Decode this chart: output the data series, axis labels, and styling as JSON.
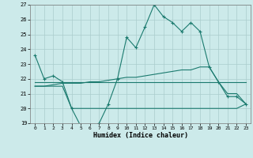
{
  "xlabel": "Humidex (Indice chaleur)",
  "x": [
    0,
    1,
    2,
    3,
    4,
    5,
    6,
    7,
    8,
    9,
    10,
    11,
    12,
    13,
    14,
    15,
    16,
    17,
    18,
    19,
    20,
    21,
    22,
    23
  ],
  "series": [
    [
      23.6,
      22.0,
      22.2,
      21.8,
      20.0,
      18.8,
      18.7,
      19.0,
      20.3,
      22.0,
      24.8,
      24.1,
      25.5,
      27.0,
      26.2,
      25.8,
      25.2,
      25.8,
      25.2,
      22.8,
      21.8,
      20.8,
      20.8,
      20.3
    ],
    [
      21.8,
      21.8,
      21.8,
      21.8,
      21.8,
      21.8,
      21.8,
      21.8,
      21.8,
      21.8,
      21.8,
      21.8,
      21.8,
      21.8,
      21.8,
      21.8,
      21.8,
      21.8,
      21.8,
      21.8,
      21.8,
      21.8,
      21.8,
      21.8
    ],
    [
      21.5,
      21.5,
      21.6,
      21.7,
      21.7,
      21.7,
      21.8,
      21.8,
      21.9,
      22.0,
      22.1,
      22.1,
      22.2,
      22.3,
      22.4,
      22.5,
      22.6,
      22.6,
      22.8,
      22.8,
      21.8,
      21.0,
      21.0,
      20.3
    ],
    [
      21.5,
      21.5,
      21.5,
      21.5,
      20.0,
      20.0,
      20.0,
      20.0,
      20.0,
      20.0,
      20.0,
      20.0,
      20.0,
      20.0,
      20.0,
      20.0,
      20.0,
      20.0,
      20.0,
      20.0,
      20.0,
      20.0,
      20.0,
      20.3
    ]
  ],
  "bg_color": "#cceaea",
  "grid_color": "#aacccc",
  "line_color": "#1a7a6e",
  "ylim": [
    19,
    27
  ],
  "yticks": [
    19,
    20,
    21,
    22,
    23,
    24,
    25,
    26,
    27
  ],
  "xticks": [
    0,
    1,
    2,
    3,
    4,
    5,
    6,
    7,
    8,
    9,
    10,
    11,
    12,
    13,
    14,
    15,
    16,
    17,
    18,
    19,
    20,
    21,
    22,
    23
  ]
}
